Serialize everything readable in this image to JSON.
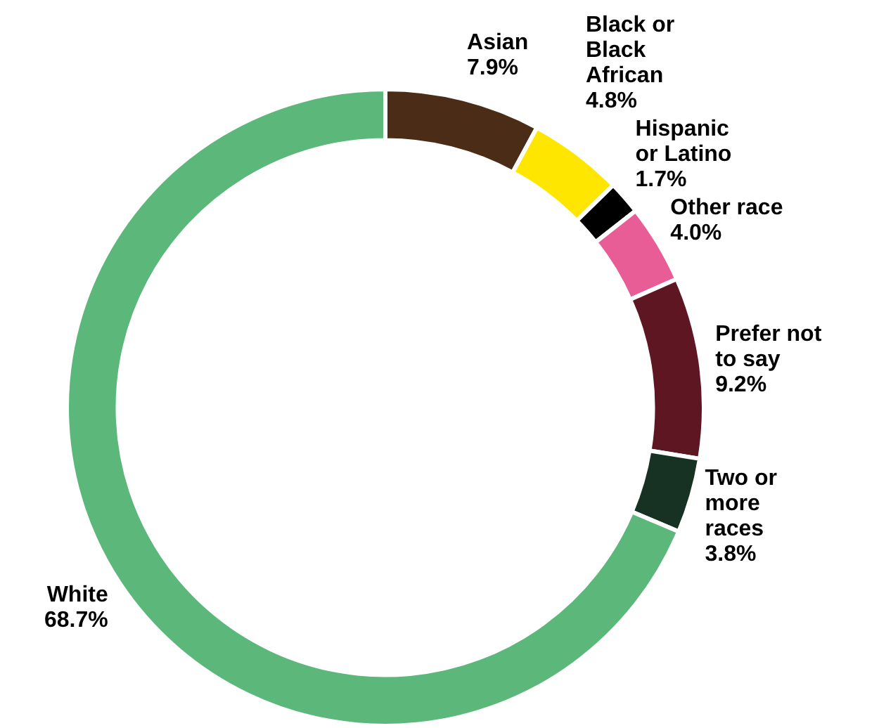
{
  "chart_data": {
    "type": "donut",
    "categories": [
      "Asian",
      "Black or Black African",
      "Hispanic or Latino",
      "Other race",
      "Prefer not to say",
      "Two or more races",
      "White"
    ],
    "values": [
      7.9,
      4.8,
      1.7,
      4.0,
      9.2,
      3.8,
      68.7
    ],
    "value_labels": [
      "7.9%",
      "4.8%",
      "1.7%",
      "4.0%",
      "9.2%",
      "3.8%",
      "68.7%"
    ],
    "colors": [
      "#4a2c17",
      "#ffe600",
      "#000000",
      "#e85d96",
      "#5e1623",
      "#173222",
      "#5cb87a"
    ],
    "legend": false
  }
}
